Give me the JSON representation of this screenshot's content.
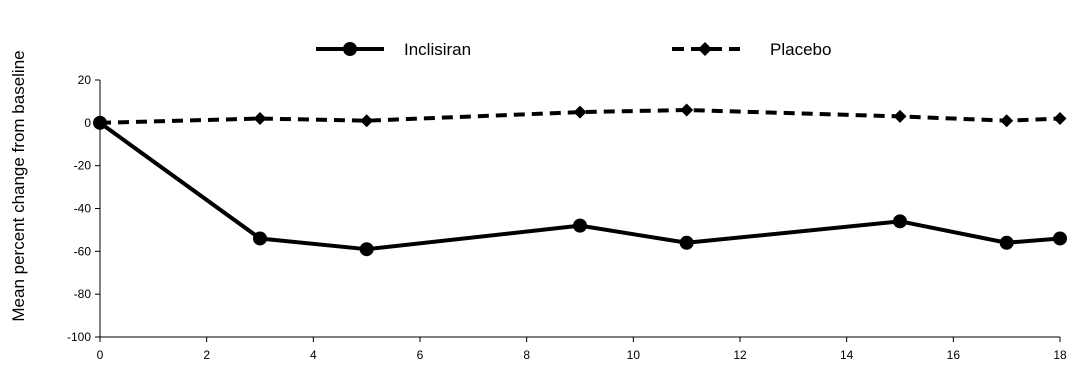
{
  "chart_data": {
    "type": "line",
    "title": "",
    "xlabel": "",
    "ylabel": "Mean percent change from baseline",
    "xlim": [
      0,
      18
    ],
    "ylim": [
      -100,
      20
    ],
    "x_ticks": [
      0,
      2,
      4,
      6,
      8,
      10,
      12,
      14,
      16,
      18
    ],
    "y_ticks": [
      20,
      0,
      -20,
      -40,
      -60,
      -80,
      -100
    ],
    "grid": false,
    "legend_position": "top-center",
    "series": [
      {
        "name": "Inclisiran",
        "line_style": "solid",
        "marker": "circle",
        "color": "#000000",
        "x": [
          0,
          3,
          5,
          9,
          11,
          15,
          17,
          18
        ],
        "values": [
          0,
          -54,
          -59,
          -48,
          -56,
          -46,
          -56,
          -54
        ]
      },
      {
        "name": "Placebo",
        "line_style": "dashed",
        "marker": "diamond",
        "color": "#000000",
        "x": [
          0,
          3,
          5,
          9,
          11,
          15,
          17,
          18
        ],
        "values": [
          0,
          2,
          1,
          5,
          6,
          3,
          1,
          2
        ]
      }
    ]
  }
}
